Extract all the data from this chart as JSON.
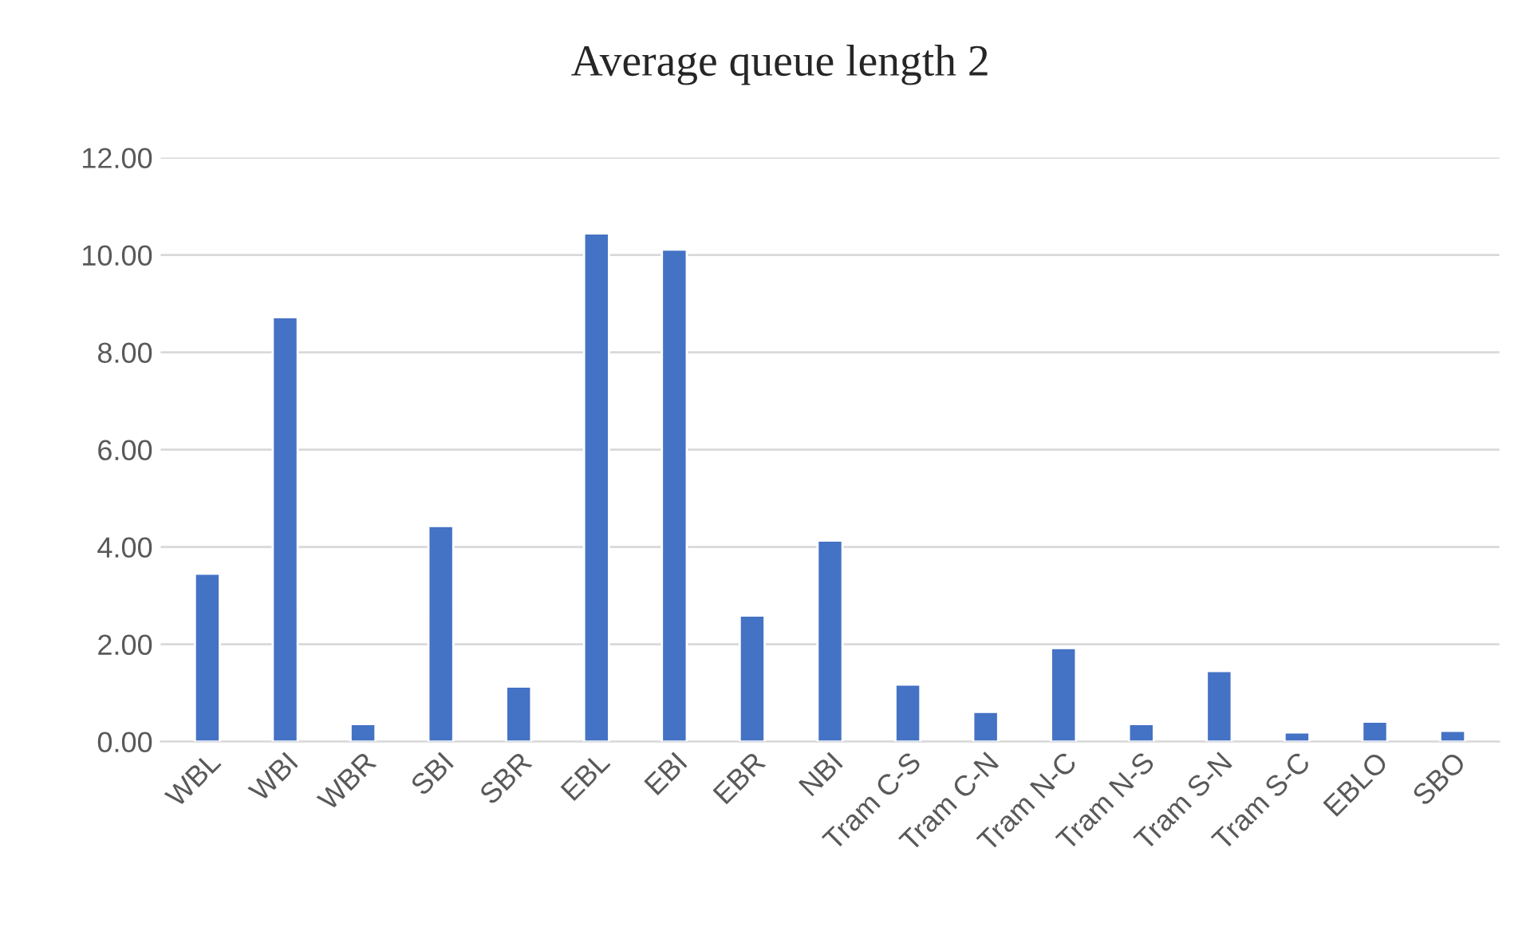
{
  "chart_data": {
    "type": "bar",
    "title": "Average queue length 2",
    "categories": [
      "WBL",
      "WBI",
      "WBR",
      "SBI",
      "SBR",
      "EBL",
      "EBI",
      "EBR",
      "NBI",
      "Tram C-S",
      "Tram C-N",
      "Tram N-C",
      "Tram N-S",
      "Tram S-N",
      "Tram S-C",
      "EBLO",
      "SBO"
    ],
    "values": [
      3.45,
      8.72,
      0.36,
      4.43,
      1.13,
      10.44,
      10.11,
      2.59,
      4.13,
      1.17,
      0.61,
      1.92,
      0.36,
      1.45,
      0.19,
      0.41,
      0.22
    ],
    "color": "#4472c4",
    "ylim": [
      0,
      12
    ],
    "yticks": [
      {
        "value": 0,
        "label": "0.00"
      },
      {
        "value": 2,
        "label": "2.00"
      },
      {
        "value": 4,
        "label": "4.00"
      },
      {
        "value": 6,
        "label": "6.00"
      },
      {
        "value": 8,
        "label": "8.00"
      },
      {
        "value": 10,
        "label": "10.00"
      },
      {
        "value": 12,
        "label": "12.00"
      }
    ],
    "grid": "y"
  }
}
